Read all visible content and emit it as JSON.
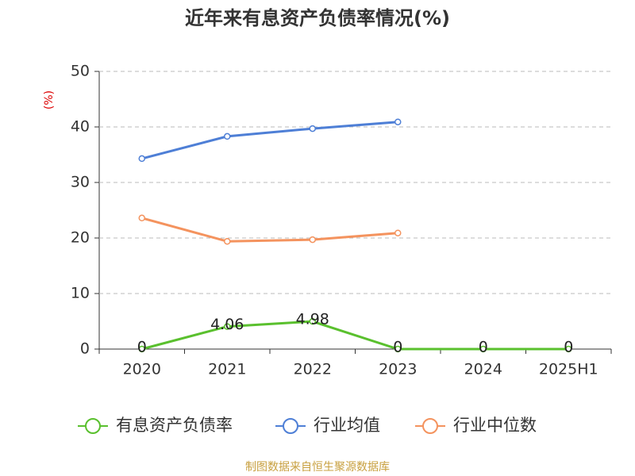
{
  "chart_data": {
    "type": "line",
    "title": "近年来有息资产负债率情况(%)",
    "y_label": "(%)",
    "categories": [
      "2020",
      "2021",
      "2022",
      "2023",
      "2024",
      "2025H1"
    ],
    "series": [
      {
        "name": "有息资产负债率",
        "color": "#5ac02e",
        "values": [
          0,
          4.06,
          4.98,
          0,
          0,
          0
        ],
        "show_labels": true
      },
      {
        "name": "行业均值",
        "color": "#4e7fd6",
        "values": [
          34.3,
          38.3,
          39.7,
          40.9,
          null,
          null
        ]
      },
      {
        "name": "行业中位数",
        "color": "#f4935e",
        "values": [
          23.6,
          19.4,
          19.7,
          20.9,
          null,
          null
        ]
      }
    ],
    "ylim": [
      0,
      50
    ],
    "yticks": [
      0,
      10,
      20,
      30,
      40,
      50
    ],
    "grid": true,
    "legend": "bottom",
    "source": "制图数据来自恒生聚源数据库"
  }
}
